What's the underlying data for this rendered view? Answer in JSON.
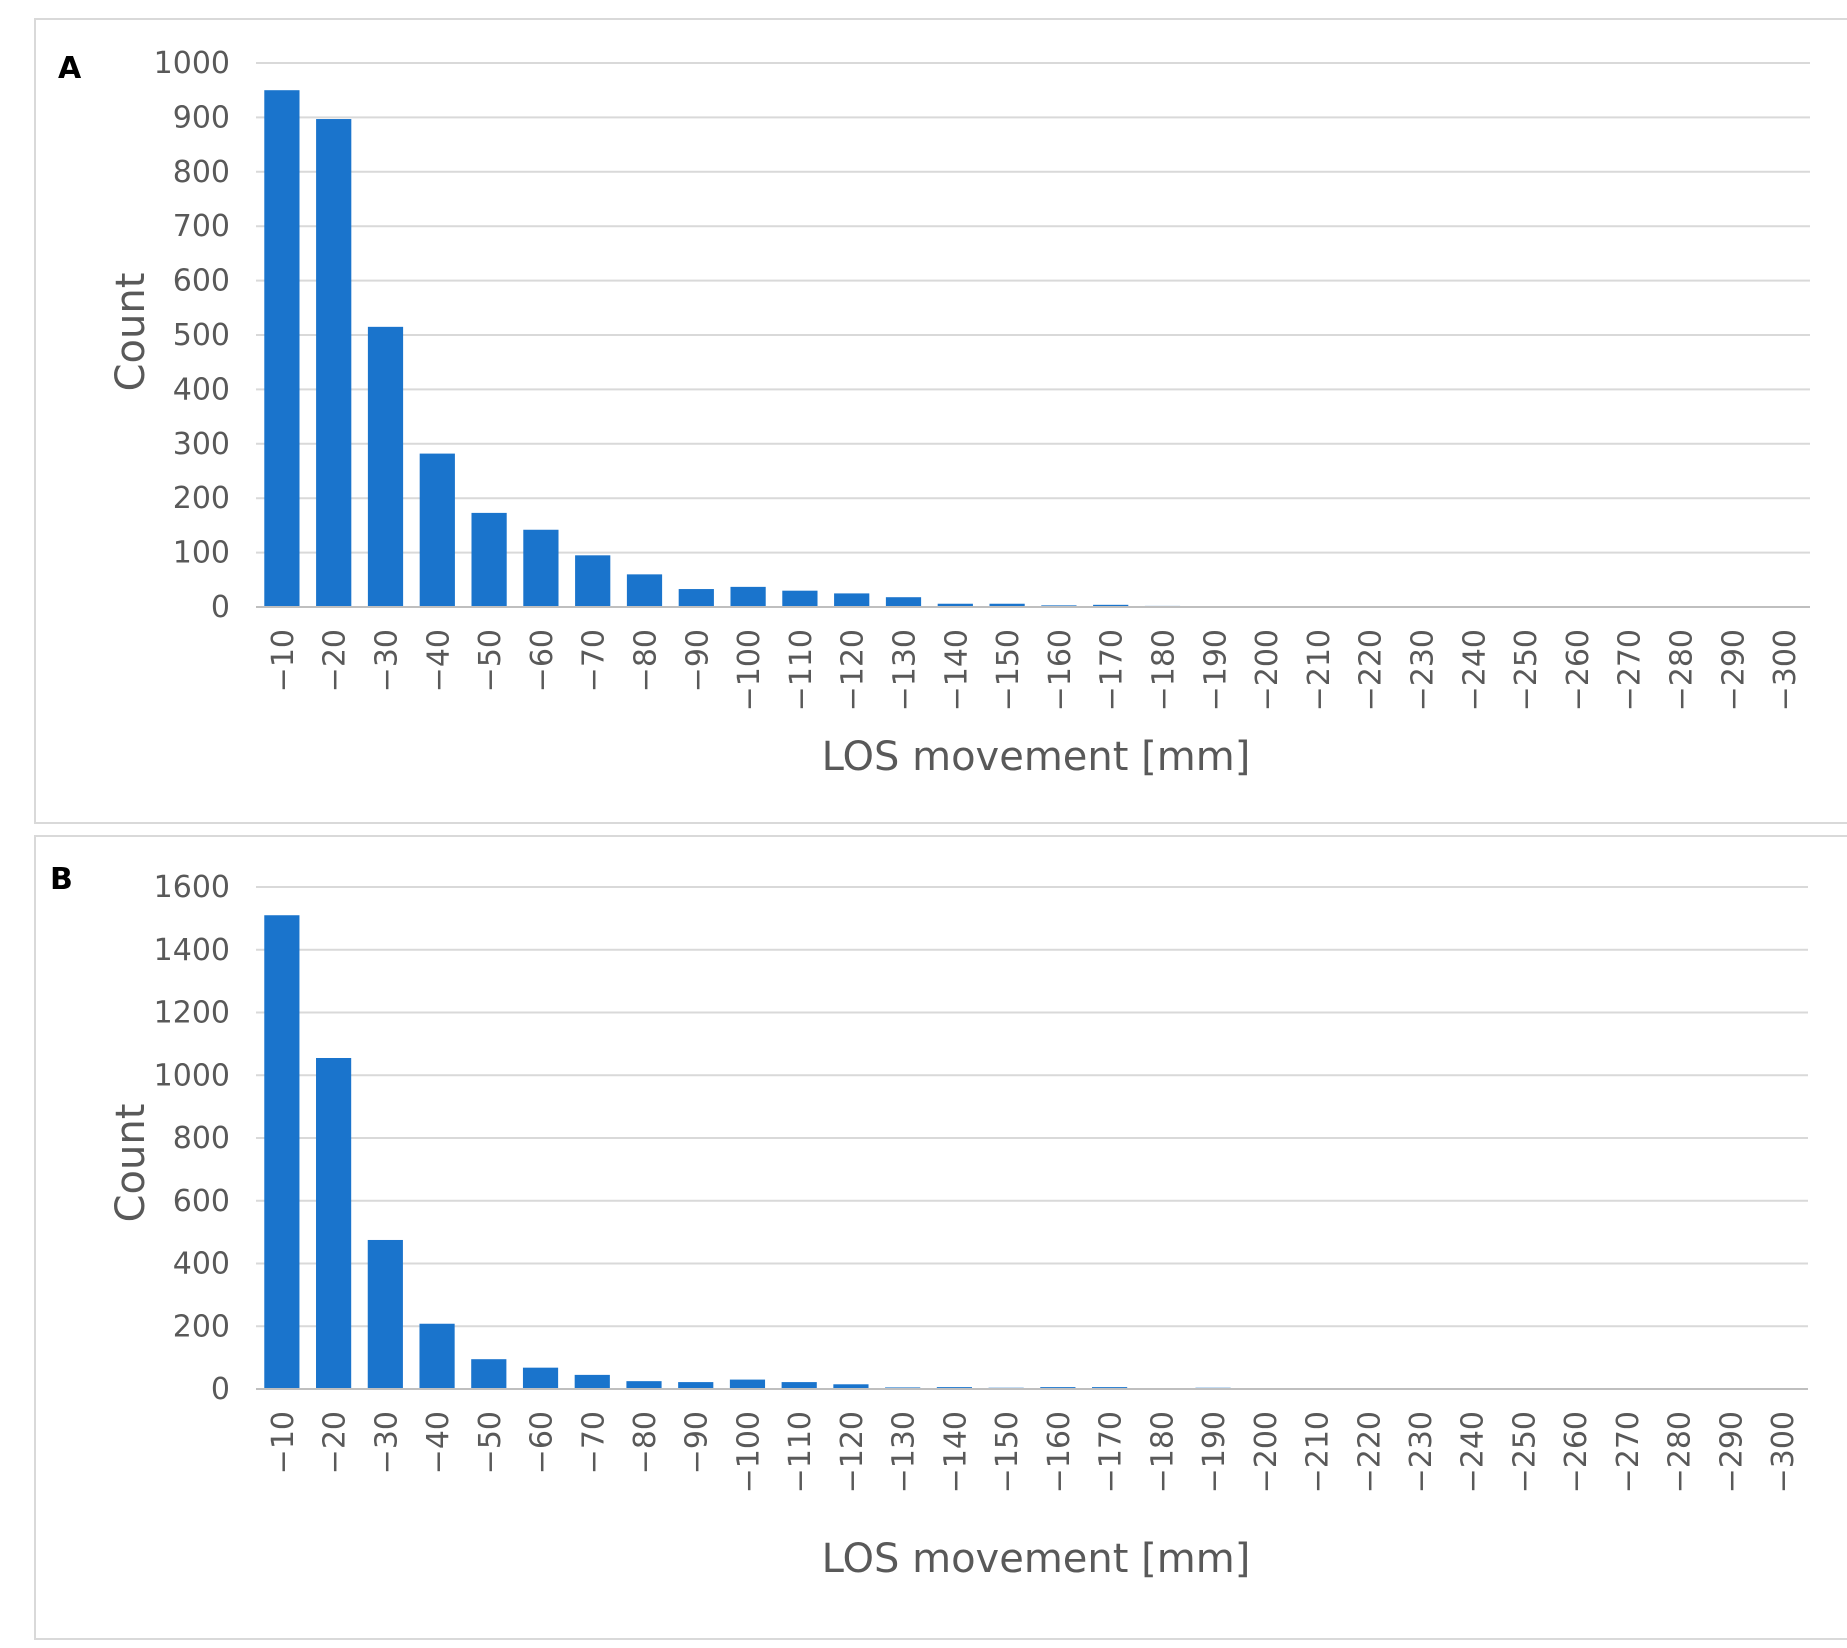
{
  "chart_data": [
    {
      "panel_label": "A",
      "type": "bar",
      "categories": [
        "−10",
        "−20",
        "−30",
        "−40",
        "−50",
        "−60",
        "−70",
        "−80",
        "−90",
        "−100",
        "−110",
        "−120",
        "−130",
        "−140",
        "−150",
        "−160",
        "−170",
        "−180",
        "−190",
        "−200",
        "−210",
        "−220",
        "−230",
        "−240",
        "−250",
        "−260",
        "−270",
        "−280",
        "−290",
        "−300"
      ],
      "values": [
        950,
        897,
        515,
        282,
        173,
        142,
        95,
        60,
        33,
        37,
        30,
        25,
        18,
        6,
        6,
        3,
        4,
        2,
        0,
        0,
        0,
        0,
        0,
        0,
        0,
        0,
        0,
        0,
        0,
        0
      ],
      "yticks": [
        "0",
        "100",
        "200",
        "300",
        "400",
        "500",
        "600",
        "700",
        "800",
        "900",
        "1000"
      ],
      "ylim": [
        0,
        1000
      ],
      "xlabel": "LOS movement [mm]",
      "ylabel": "Count",
      "grid": true,
      "bar_color": "#1a74cc"
    },
    {
      "panel_label": "B",
      "type": "bar",
      "categories": [
        "−10",
        "−20",
        "−30",
        "−40",
        "−50",
        "−60",
        "−70",
        "−80",
        "−90",
        "−100",
        "−110",
        "−120",
        "−130",
        "−140",
        "−150",
        "−160",
        "−170",
        "−180",
        "−190",
        "−200",
        "−210",
        "−220",
        "−230",
        "−240",
        "−250",
        "−260",
        "−270",
        "−280",
        "−290",
        "−300"
      ],
      "values": [
        1510,
        1055,
        475,
        208,
        95,
        68,
        45,
        25,
        22,
        30,
        22,
        15,
        5,
        6,
        4,
        6,
        6,
        3,
        4,
        0,
        0,
        0,
        0,
        0,
        0,
        0,
        0,
        0,
        0,
        0
      ],
      "yticks": [
        "0",
        "200",
        "400",
        "600",
        "800",
        "1000",
        "1200",
        "1400",
        "1600"
      ],
      "ylim": [
        0,
        1600
      ],
      "xlabel": "LOS movement [mm]",
      "ylabel": "Count",
      "grid": true,
      "bar_color": "#1a74cc"
    }
  ]
}
